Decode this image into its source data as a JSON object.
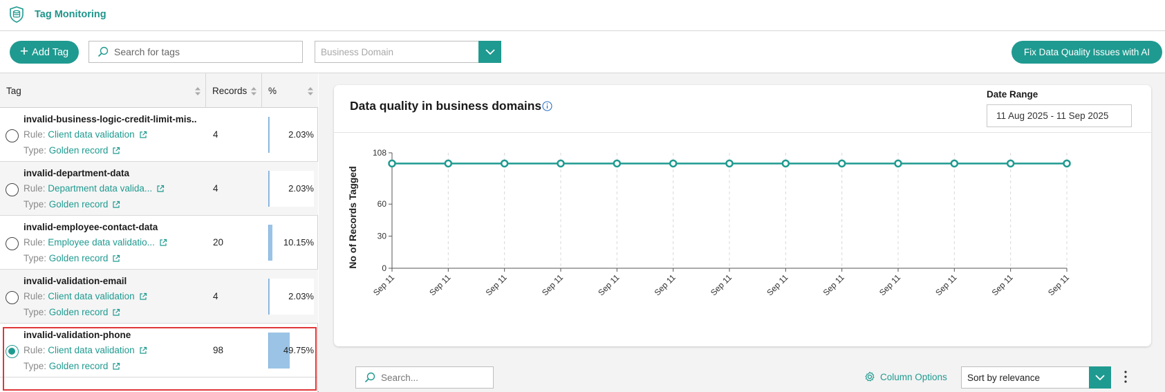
{
  "app": {
    "title": "Tag Monitoring",
    "logo_icon": "database-shield-icon"
  },
  "toolbar": {
    "add_tag_label": "Add Tag",
    "search_placeholder": "Search for tags",
    "domain_placeholder": "Business Domain",
    "fix_button_label": "Fix Data Quality Issues with AI"
  },
  "table": {
    "columns": [
      "Tag",
      "Records",
      "%"
    ],
    "rule_prefix": "Rule:",
    "type_prefix": "Type:",
    "rows": [
      {
        "name": "invalid-business-logic-credit-limit-mis...",
        "rule": "Client data validation",
        "type": "Golden record",
        "records": "4",
        "percent": "2.03%",
        "percent_value": 2.03,
        "selected": false
      },
      {
        "name": "invalid-department-data",
        "rule": "Department data valida...",
        "type": "Golden record",
        "records": "4",
        "percent": "2.03%",
        "percent_value": 2.03,
        "selected": false
      },
      {
        "name": "invalid-employee-contact-data",
        "rule": "Employee data validatio...",
        "type": "Golden record",
        "records": "20",
        "percent": "10.15%",
        "percent_value": 10.15,
        "selected": false
      },
      {
        "name": "invalid-validation-email",
        "rule": "Client data validation",
        "type": "Golden record",
        "records": "4",
        "percent": "2.03%",
        "percent_value": 2.03,
        "selected": false
      },
      {
        "name": "invalid-validation-phone",
        "rule": "Client data validation",
        "type": "Golden record",
        "records": "98",
        "percent": "49.75%",
        "percent_value": 49.75,
        "selected": true
      }
    ]
  },
  "chart_panel": {
    "title": "Data quality in business domains",
    "date_range_label": "Date Range",
    "date_range_value": "11 Aug 2025 - 11 Sep 2025"
  },
  "chart_data": {
    "type": "line",
    "ylabel": "No of Records Tagged",
    "xlabel": "",
    "yticks": [
      0,
      30,
      60,
      108
    ],
    "ylim": [
      0,
      108
    ],
    "x": [
      "Sep 11",
      "Sep 11",
      "Sep 11",
      "Sep 11",
      "Sep 11",
      "Sep 11",
      "Sep 11",
      "Sep 11",
      "Sep 11",
      "Sep 11",
      "Sep 11",
      "Sep 11",
      "Sep 11"
    ],
    "series": [
      {
        "values": [
          98,
          98,
          98,
          98,
          98,
          98,
          98,
          98,
          98,
          98,
          98,
          98,
          98
        ],
        "color": "#1f9a90"
      }
    ],
    "grid": "vertical-dashed"
  },
  "bottom": {
    "search_placeholder": "Search...",
    "column_options_label": "Column Options",
    "sort_value": "Sort by relevance"
  },
  "colors": {
    "accent": "#1f9a90",
    "selection": "#e0363a",
    "bar": "#9bc3e6"
  }
}
